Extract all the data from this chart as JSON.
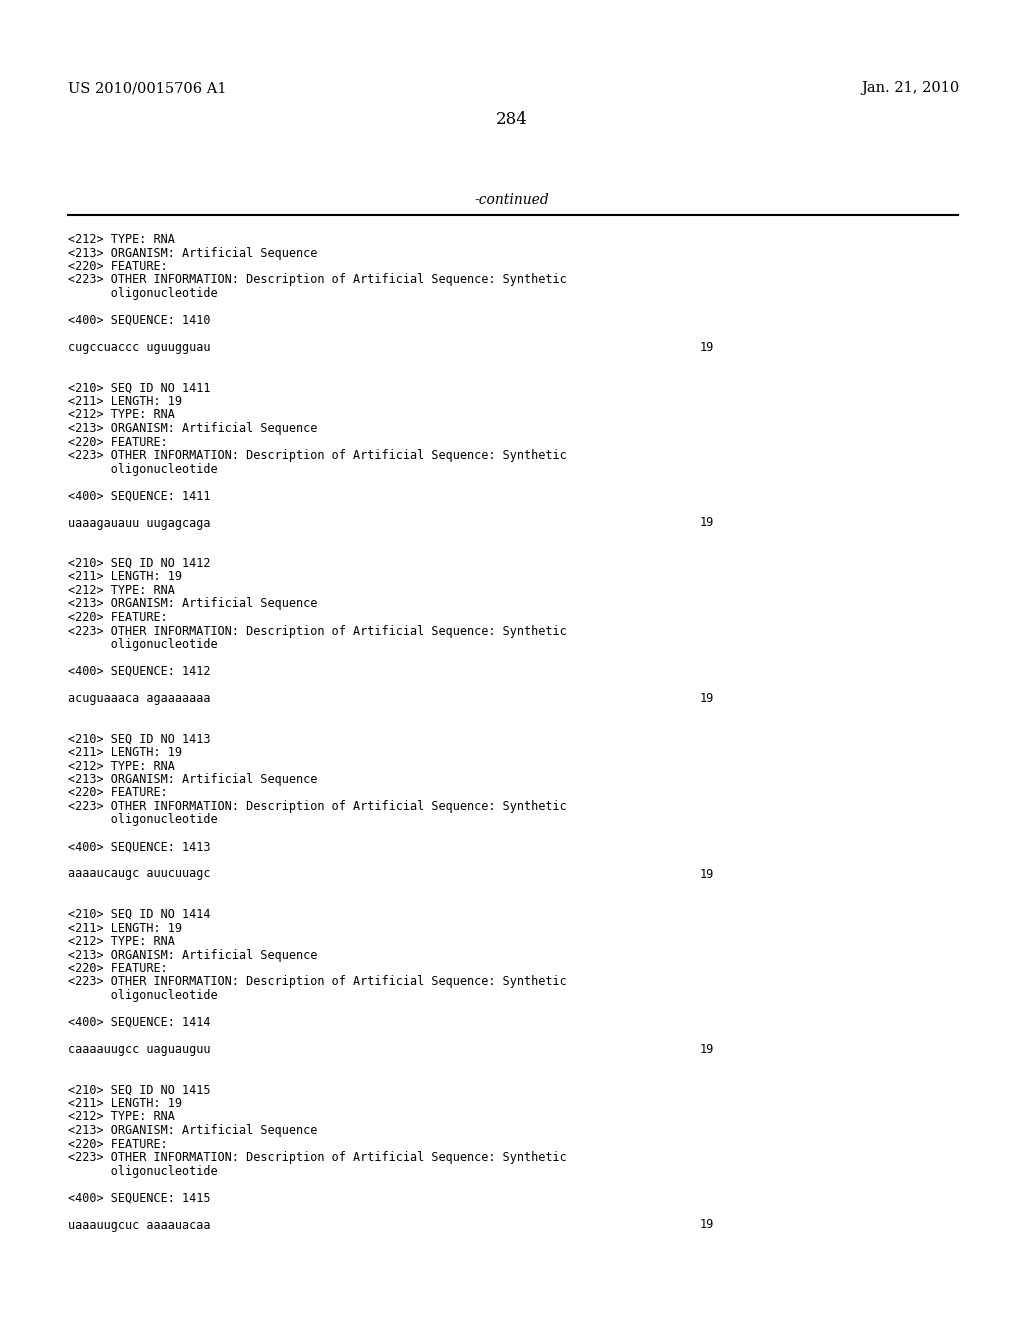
{
  "header_left": "US 2010/0015706 A1",
  "header_right": "Jan. 21, 2010",
  "page_number": "284",
  "continued_label": "-continued",
  "background_color": "#ffffff",
  "text_color": "#000000",
  "left_lines": [
    "<212> TYPE: RNA",
    "<213> ORGANISM: Artificial Sequence",
    "<220> FEATURE:",
    "<223> OTHER INFORMATION: Description of Artificial Sequence: Synthetic",
    "      oligonucleotide",
    "",
    "<400> SEQUENCE: 1410",
    "",
    "cugccuaccc uguugguau",
    "",
    "",
    "<210> SEQ ID NO 1411",
    "<211> LENGTH: 19",
    "<212> TYPE: RNA",
    "<213> ORGANISM: Artificial Sequence",
    "<220> FEATURE:",
    "<223> OTHER INFORMATION: Description of Artificial Sequence: Synthetic",
    "      oligonucleotide",
    "",
    "<400> SEQUENCE: 1411",
    "",
    "uaaagauauu uugagcaga",
    "",
    "",
    "<210> SEQ ID NO 1412",
    "<211> LENGTH: 19",
    "<212> TYPE: RNA",
    "<213> ORGANISM: Artificial Sequence",
    "<220> FEATURE:",
    "<223> OTHER INFORMATION: Description of Artificial Sequence: Synthetic",
    "      oligonucleotide",
    "",
    "<400> SEQUENCE: 1412",
    "",
    "acuguaaaca agaaaaaaa",
    "",
    "",
    "<210> SEQ ID NO 1413",
    "<211> LENGTH: 19",
    "<212> TYPE: RNA",
    "<213> ORGANISM: Artificial Sequence",
    "<220> FEATURE:",
    "<223> OTHER INFORMATION: Description of Artificial Sequence: Synthetic",
    "      oligonucleotide",
    "",
    "<400> SEQUENCE: 1413",
    "",
    "aaaaucaugc auucuuagc",
    "",
    "",
    "<210> SEQ ID NO 1414",
    "<211> LENGTH: 19",
    "<212> TYPE: RNA",
    "<213> ORGANISM: Artificial Sequence",
    "<220> FEATURE:",
    "<223> OTHER INFORMATION: Description of Artificial Sequence: Synthetic",
    "      oligonucleotide",
    "",
    "<400> SEQUENCE: 1414",
    "",
    "caaaauugcc uaguauguu",
    "",
    "",
    "<210> SEQ ID NO 1415",
    "<211> LENGTH: 19",
    "<212> TYPE: RNA",
    "<213> ORGANISM: Artificial Sequence",
    "<220> FEATURE:",
    "<223> OTHER INFORMATION: Description of Artificial Sequence: Synthetic",
    "      oligonucleotide",
    "",
    "<400> SEQUENCE: 1415",
    "",
    "uaaauugcuc aaaauacaa"
  ],
  "seq_number_lines": [
    8,
    21,
    34,
    47,
    60,
    73
  ],
  "seq_number_value": "19"
}
